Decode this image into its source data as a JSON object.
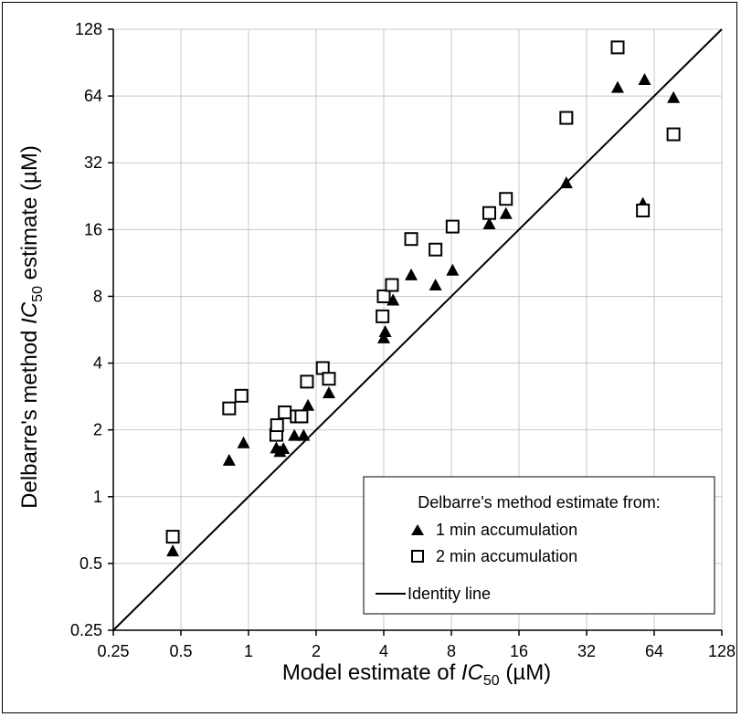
{
  "chart_data": {
    "type": "scatter",
    "xlabel": {
      "pre": "Model estimate of ",
      "ital": "IC",
      "sub": "50",
      "post": " (µM)"
    },
    "ylabel": {
      "pre": "Delbarre's method ",
      "ital": "IC",
      "sub": "50",
      "post": " estimate (µM)"
    },
    "xscale": "log2",
    "yscale": "log2",
    "xlim": [
      0.25,
      128
    ],
    "ylim": [
      0.25,
      128
    ],
    "x_ticks": [
      0.25,
      0.5,
      1,
      2,
      4,
      8,
      16,
      32,
      64,
      128
    ],
    "x_tick_labels": [
      "0.25",
      "0.5",
      "1",
      "2",
      "4",
      "8",
      "16",
      "32",
      "64",
      "128"
    ],
    "y_ticks": [
      0.25,
      0.5,
      1,
      2,
      4,
      8,
      16,
      32,
      64,
      128
    ],
    "y_tick_labels": [
      "0.25",
      "0.5",
      "1",
      "2",
      "4",
      "8",
      "16",
      "32",
      "64",
      "128"
    ],
    "grid": true,
    "legend": {
      "title": "Delbarre's method estimate from:",
      "placement": "bottom-right",
      "entries": [
        "1 min accumulation",
        "2 min accumulation",
        "Identity line"
      ]
    },
    "series": [
      {
        "name": "1 min accumulation",
        "marker": "filled-triangle",
        "points": [
          [
            0.46,
            0.57
          ],
          [
            0.82,
            1.46
          ],
          [
            0.95,
            1.75
          ],
          [
            1.33,
            1.66
          ],
          [
            1.38,
            1.6
          ],
          [
            1.43,
            1.65
          ],
          [
            1.6,
            1.89
          ],
          [
            1.76,
            1.89
          ],
          [
            1.84,
            2.58
          ],
          [
            2.28,
            2.94
          ],
          [
            4.0,
            5.2
          ],
          [
            4.06,
            5.55
          ],
          [
            4.4,
            7.7
          ],
          [
            5.3,
            10.0
          ],
          [
            6.8,
            9.0
          ],
          [
            8.1,
            10.5
          ],
          [
            11.8,
            17.0
          ],
          [
            14.0,
            18.9
          ],
          [
            26.0,
            26.0
          ],
          [
            44.0,
            70.0
          ],
          [
            57.0,
            21.0
          ],
          [
            58.0,
            76.0
          ],
          [
            78.0,
            63.0
          ]
        ]
      },
      {
        "name": "2 min accumulation",
        "marker": "open-square",
        "points": [
          [
            0.46,
            0.66
          ],
          [
            0.82,
            2.5
          ],
          [
            0.93,
            2.85
          ],
          [
            1.33,
            1.9
          ],
          [
            1.34,
            2.1
          ],
          [
            1.45,
            2.4
          ],
          [
            1.64,
            2.3
          ],
          [
            1.72,
            2.3
          ],
          [
            1.82,
            3.3
          ],
          [
            2.14,
            3.8
          ],
          [
            2.28,
            3.4
          ],
          [
            3.95,
            6.5
          ],
          [
            4.0,
            8.0
          ],
          [
            4.35,
            9.0
          ],
          [
            5.3,
            14.5
          ],
          [
            6.8,
            13.0
          ],
          [
            8.1,
            16.5
          ],
          [
            11.8,
            19.0
          ],
          [
            14.0,
            22.0
          ],
          [
            26.0,
            51.0
          ],
          [
            44.0,
            106.0
          ],
          [
            57.0,
            19.5
          ],
          [
            78.0,
            43.0
          ]
        ]
      },
      {
        "name": "Identity line",
        "marker": "line",
        "points": [
          [
            0.25,
            0.25
          ],
          [
            128,
            128
          ]
        ]
      }
    ]
  },
  "colors": {
    "marker": "#000000",
    "grid": "#c8c8c8",
    "axis": "#000000",
    "background": "#ffffff"
  }
}
